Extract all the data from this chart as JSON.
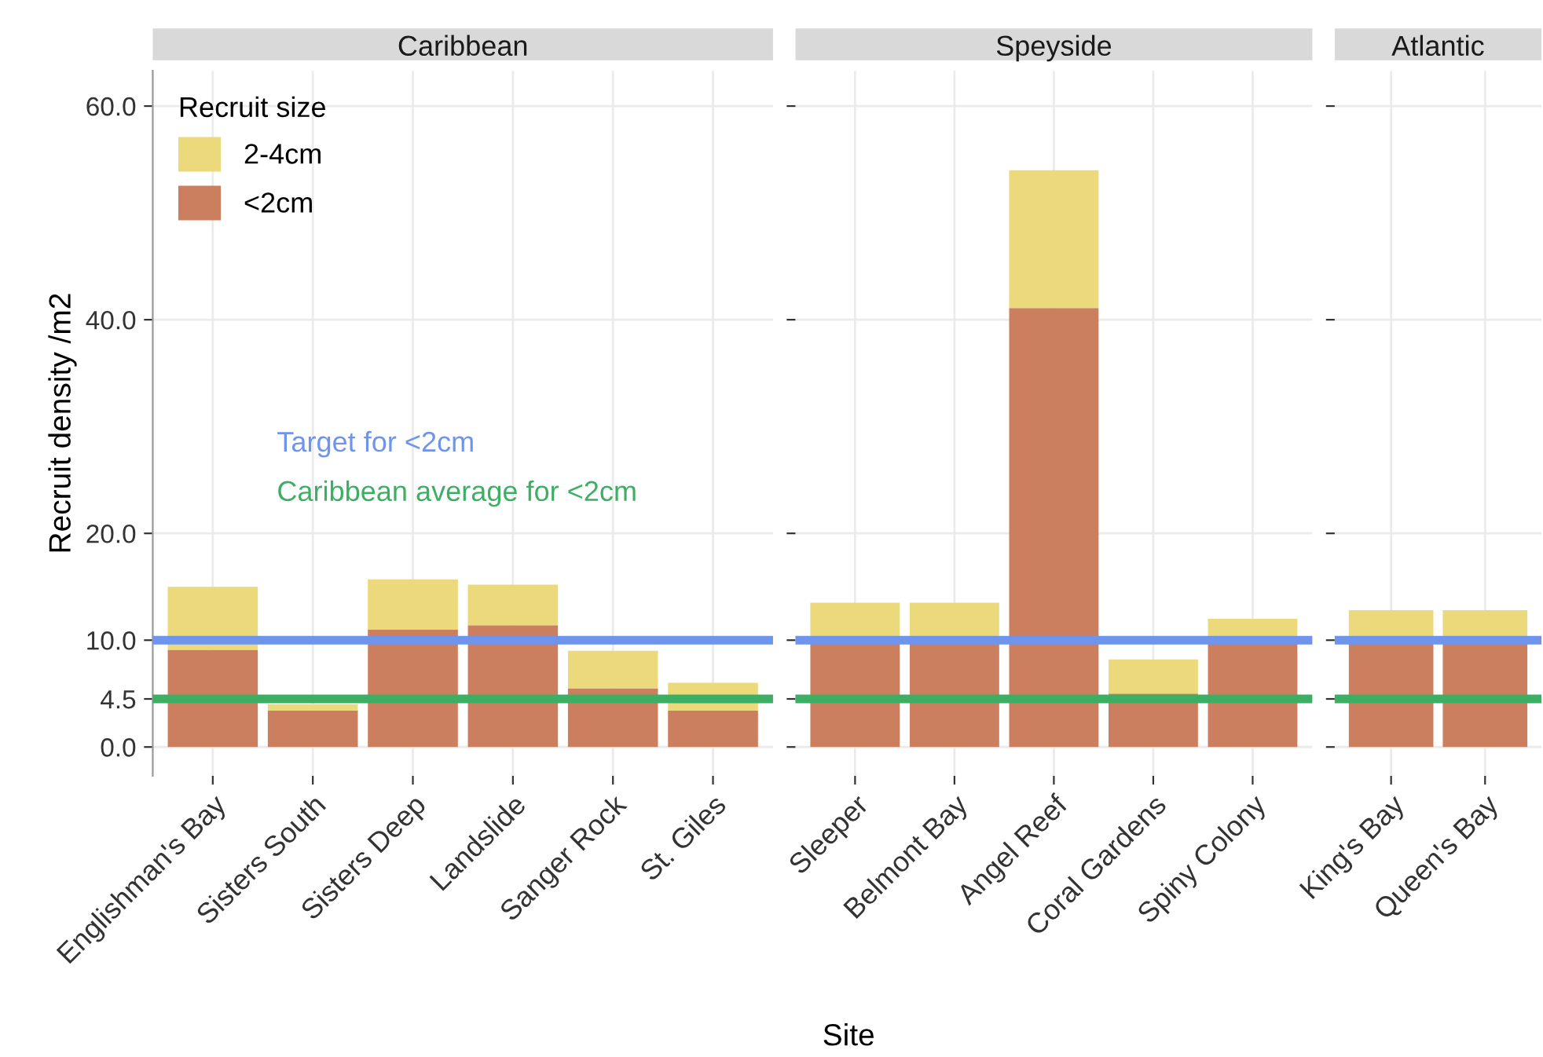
{
  "chart_data": [
    {
      "type": "bar",
      "title": "Caribbean",
      "ylabel": "Recruit density /m2",
      "xlabel": "Site",
      "legend_title": "Recruit size",
      "legend": "top left",
      "stacked": true,
      "grid": true,
      "categories": [
        "Englishman's Bay",
        "Sisters South",
        "Sisters Deep",
        "Landslide",
        "Sanger Rock",
        "St. Giles"
      ],
      "series": [
        {
          "name": "<2cm",
          "color": "#cc7f5f",
          "values": [
            9.1,
            3.4,
            11.0,
            11.4,
            5.5,
            3.4
          ]
        },
        {
          "name": "2-4cm",
          "color": "#ecd97b",
          "values": [
            5.9,
            0.6,
            4.7,
            3.8,
            3.5,
            2.6
          ]
        }
      ],
      "ylim": [
        -2.7,
        63.3
      ],
      "yticks": [
        {
          "value": 0,
          "label": "0.0"
        },
        {
          "value": 4.5,
          "label": "4.5"
        },
        {
          "value": 10,
          "label": "10.0"
        },
        {
          "value": 20,
          "label": "20.0"
        },
        {
          "value": 40,
          "label": "40.0"
        },
        {
          "value": 60,
          "label": "60.0"
        }
      ],
      "ref_lines": [
        {
          "axis": "y",
          "value": 10,
          "label": "Target for <2cm",
          "color": "#6f94ec"
        },
        {
          "axis": "y",
          "value": 4.5,
          "label": "Caribbean average for <2cm",
          "color": "#3daf64"
        }
      ]
    },
    {
      "type": "bar",
      "title": "Speyside",
      "stacked": true,
      "grid": true,
      "tick_labels": "x",
      "categories": [
        "Sleeper",
        "Belmont Bay",
        "Angel Reef",
        "Coral Gardens",
        "Spiny Colony"
      ],
      "series": [
        {
          "color": "#cc7f5f",
          "values": [
            10.0,
            10.0,
            41.1,
            5.0,
            10.0
          ]
        },
        {
          "color": "#ecd97b",
          "values": [
            3.5,
            3.5,
            12.9,
            3.2,
            2.0
          ]
        }
      ],
      "ylim": [
        -2.7,
        63.3
      ],
      "yticks": [
        {
          "value": 0,
          "label": null
        },
        {
          "value": 4.5,
          "label": null
        },
        {
          "value": 10,
          "label": null
        },
        {
          "value": 20,
          "label": null
        },
        {
          "value": 40,
          "label": null
        },
        {
          "value": 60,
          "label": null
        }
      ],
      "ref_lines": [
        {
          "axis": "y",
          "value": 10,
          "color": "#6f94ec"
        },
        {
          "axis": "y",
          "value": 4.5,
          "color": "#3daf64"
        }
      ]
    },
    {
      "type": "bar",
      "title": "Atlantic",
      "stacked": true,
      "grid": true,
      "tick_labels": "x",
      "categories": [
        "King's Bay",
        "Queen's Bay"
      ],
      "series": [
        {
          "color": "#cc7f5f",
          "values": [
            10.0,
            10.0
          ]
        },
        {
          "color": "#ecd97b",
          "values": [
            2.8,
            2.8
          ]
        }
      ],
      "ylim": [
        -2.7,
        63.3
      ],
      "yticks": [
        {
          "value": 0,
          "label": null
        },
        {
          "value": 4.5,
          "label": null
        },
        {
          "value": 10,
          "label": null
        },
        {
          "value": 20,
          "label": null
        },
        {
          "value": 40,
          "label": null
        },
        {
          "value": 60,
          "label": null
        }
      ],
      "ref_lines": [
        {
          "axis": "y",
          "value": 10,
          "color": "#6f94ec"
        },
        {
          "axis": "y",
          "value": 4.5,
          "color": "#3daf64"
        }
      ]
    }
  ]
}
